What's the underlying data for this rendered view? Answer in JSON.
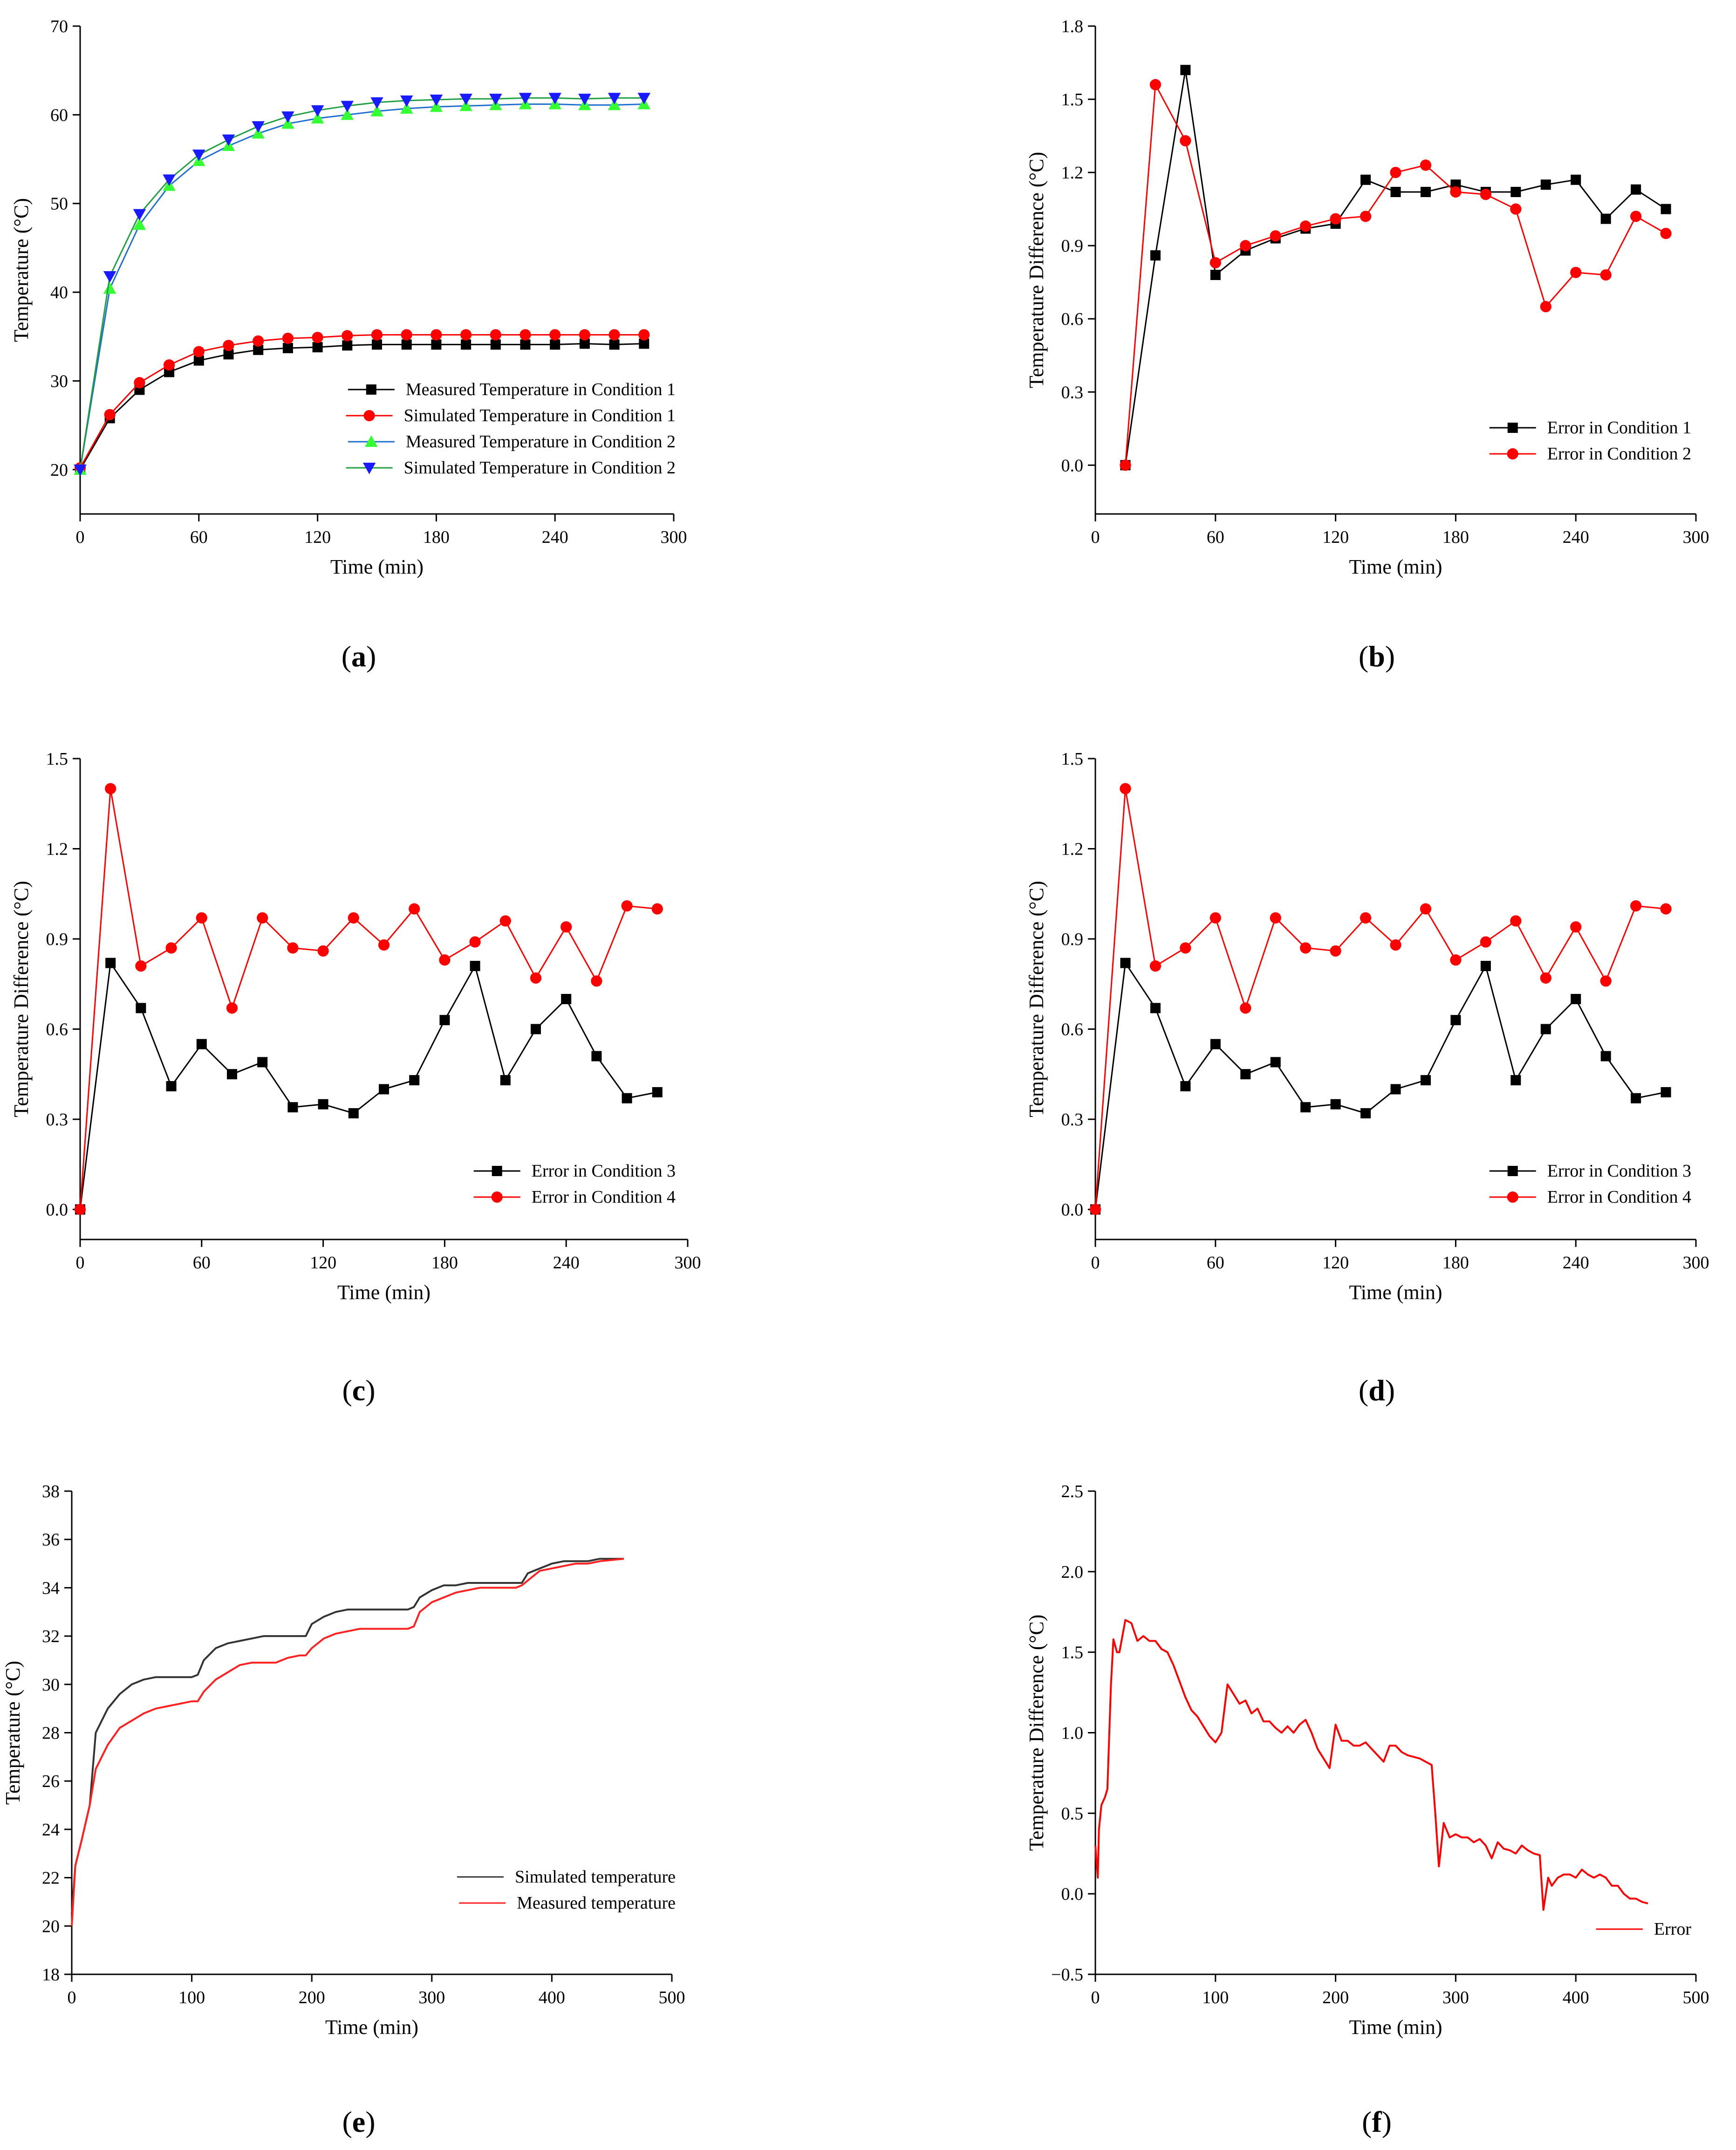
{
  "chart_data": [
    {
      "id": "a",
      "type": "line",
      "panel_label": "a",
      "xlabel": "Time (min)",
      "ylabel": "Temperature (°C)",
      "xlim": [
        0,
        300
      ],
      "ylim": [
        15,
        70
      ],
      "xticks": [
        0,
        60,
        120,
        180,
        240,
        300
      ],
      "yticks": [
        20,
        30,
        40,
        50,
        60,
        70
      ],
      "legend_position": "bottom-right",
      "series": [
        {
          "name": "Measured Temperature  in  Condition 1",
          "color": "#000000",
          "marker": "square",
          "x": [
            0,
            15,
            30,
            45,
            60,
            75,
            90,
            105,
            120,
            135,
            150,
            165,
            180,
            195,
            210,
            225,
            240,
            255,
            270,
            285
          ],
          "y": [
            20,
            25.8,
            29,
            31,
            32.3,
            33,
            33.5,
            33.7,
            33.8,
            34,
            34.1,
            34.1,
            34.1,
            34.1,
            34.1,
            34.1,
            34.1,
            34.2,
            34.1,
            34.2
          ]
        },
        {
          "name": "Simulated Temperature  in  Condition 1",
          "color": "#ff0000",
          "marker": "circle",
          "x": [
            0,
            15,
            30,
            45,
            60,
            75,
            90,
            105,
            120,
            135,
            150,
            165,
            180,
            195,
            210,
            225,
            240,
            255,
            270,
            285
          ],
          "y": [
            20.2,
            26.2,
            29.8,
            31.8,
            33.3,
            34,
            34.5,
            34.8,
            34.9,
            35.1,
            35.2,
            35.2,
            35.2,
            35.2,
            35.2,
            35.2,
            35.2,
            35.2,
            35.2,
            35.2
          ]
        },
        {
          "name": "Measured Temperature in  Condition 2",
          "color": "#1f6fd0",
          "marker": "triangle-up",
          "marker_color": "#33ff33",
          "x": [
            0,
            15,
            30,
            45,
            60,
            75,
            90,
            105,
            120,
            135,
            150,
            165,
            180,
            195,
            210,
            225,
            240,
            255,
            270,
            285
          ],
          "y": [
            20,
            40.4,
            47.6,
            52,
            54.8,
            56.5,
            57.9,
            59,
            59.6,
            60,
            60.4,
            60.7,
            60.9,
            61,
            61.1,
            61.2,
            61.2,
            61.1,
            61.1,
            61.2
          ]
        },
        {
          "name": "Simulated Temperature in  Condition 2",
          "color": "#1f9f3f",
          "marker": "triangle-down",
          "marker_color": "#1a1aff",
          "x": [
            0,
            15,
            30,
            45,
            60,
            75,
            90,
            105,
            120,
            135,
            150,
            165,
            180,
            195,
            210,
            225,
            240,
            255,
            270,
            285
          ],
          "y": [
            20,
            41.8,
            48.8,
            52.7,
            55.5,
            57.2,
            58.7,
            59.8,
            60.5,
            61,
            61.4,
            61.6,
            61.7,
            61.8,
            61.8,
            61.9,
            61.9,
            61.8,
            61.9,
            61.9
          ]
        }
      ]
    },
    {
      "id": "b",
      "type": "line",
      "panel_label": "b",
      "xlabel": "Time (min)",
      "ylabel": "Temperature Difference (°C)",
      "xlim": [
        0,
        300
      ],
      "ylim": [
        -0.2,
        1.8
      ],
      "xticks": [
        0,
        60,
        120,
        180,
        240,
        300
      ],
      "yticks": [
        0.0,
        0.3,
        0.6,
        0.9,
        1.2,
        1.5,
        1.8
      ],
      "y_decimals": 1,
      "legend_position": "bottom-right",
      "series": [
        {
          "name": "Error in  Condition 1",
          "color": "#000000",
          "marker": "square",
          "x": [
            15,
            30,
            45,
            60,
            75,
            90,
            105,
            120,
            135,
            150,
            165,
            180,
            195,
            210,
            225,
            240,
            255,
            270,
            285
          ],
          "y": [
            0.0,
            0.86,
            1.62,
            0.78,
            0.88,
            0.93,
            0.97,
            0.99,
            1.17,
            1.12,
            1.12,
            1.15,
            1.12,
            1.12,
            1.15,
            1.17,
            1.01,
            1.13,
            1.05
          ]
        },
        {
          "name": "Error in  Condition 2",
          "color": "#ff0000",
          "marker": "circle",
          "x": [
            15,
            30,
            45,
            60,
            75,
            90,
            105,
            120,
            135,
            150,
            165,
            180,
            195,
            210,
            225,
            240,
            255,
            270,
            285
          ],
          "y": [
            0.0,
            1.56,
            1.33,
            0.83,
            0.9,
            0.94,
            0.98,
            1.01,
            1.02,
            1.2,
            1.23,
            1.12,
            1.11,
            1.05,
            0.65,
            0.79,
            0.78,
            1.02,
            0.95
          ]
        }
      ]
    },
    {
      "id": "c",
      "type": "line",
      "panel_label": "c",
      "xlabel": "Time (min)",
      "ylabel": "Temperature Difference (°C)",
      "xlim": [
        0,
        300
      ],
      "ylim": [
        -0.1,
        1.5
      ],
      "xticks": [
        0,
        60,
        120,
        180,
        240,
        300
      ],
      "yticks": [
        0.0,
        0.3,
        0.6,
        0.9,
        1.2,
        1.5
      ],
      "y_decimals": 1,
      "legend_position": "bottom-right",
      "series": [
        {
          "name": "Error in  Condition 3",
          "color": "#000000",
          "marker": "square",
          "x": [
            0,
            15,
            30,
            45,
            60,
            75,
            90,
            105,
            120,
            135,
            150,
            165,
            180,
            195,
            210,
            225,
            240,
            255,
            270,
            285
          ],
          "y": [
            0.0,
            0.82,
            0.67,
            0.41,
            0.55,
            0.45,
            0.49,
            0.34,
            0.35,
            0.32,
            0.4,
            0.43,
            0.63,
            0.81,
            0.43,
            0.6,
            0.7,
            0.51,
            0.37,
            0.39
          ]
        },
        {
          "name": "Error in  Condition 4",
          "color": "#ff0000",
          "marker": "circle",
          "x": [
            0,
            15,
            30,
            45,
            60,
            75,
            90,
            105,
            120,
            135,
            150,
            165,
            180,
            195,
            210,
            225,
            240,
            255,
            270,
            285
          ],
          "y": [
            0.0,
            1.4,
            0.81,
            0.87,
            0.97,
            0.67,
            0.97,
            0.87,
            0.86,
            0.97,
            0.88,
            1.0,
            0.83,
            0.89,
            0.96,
            0.77,
            0.94,
            0.76,
            1.01,
            1.0
          ]
        }
      ]
    },
    {
      "id": "d",
      "type": "line",
      "panel_label": "d",
      "xlabel": "Time (min)",
      "ylabel": "Temperature Difference (°C)",
      "xlim": [
        0,
        300
      ],
      "ylim": [
        -0.1,
        1.5
      ],
      "xticks": [
        0,
        60,
        120,
        180,
        240,
        300
      ],
      "yticks": [
        0.0,
        0.3,
        0.6,
        0.9,
        1.2,
        1.5
      ],
      "y_decimals": 1,
      "legend_position": "bottom-right",
      "series": [
        {
          "name": "Error in  Condition 3",
          "color": "#000000",
          "marker": "square",
          "x": [
            0,
            15,
            30,
            45,
            60,
            75,
            90,
            105,
            120,
            135,
            150,
            165,
            180,
            195,
            210,
            225,
            240,
            255,
            270,
            285
          ],
          "y": [
            0.0,
            0.82,
            0.67,
            0.41,
            0.55,
            0.45,
            0.49,
            0.34,
            0.35,
            0.32,
            0.4,
            0.43,
            0.63,
            0.81,
            0.43,
            0.6,
            0.7,
            0.51,
            0.37,
            0.39
          ]
        },
        {
          "name": "Error in  Condition 4",
          "color": "#ff0000",
          "marker": "circle",
          "x": [
            0,
            15,
            30,
            45,
            60,
            75,
            90,
            105,
            120,
            135,
            150,
            165,
            180,
            195,
            210,
            225,
            240,
            255,
            270,
            285
          ],
          "y": [
            0.0,
            1.4,
            0.81,
            0.87,
            0.97,
            0.67,
            0.97,
            0.87,
            0.86,
            0.97,
            0.88,
            1.0,
            0.83,
            0.89,
            0.96,
            0.77,
            0.94,
            0.76,
            1.01,
            1.0
          ]
        }
      ]
    },
    {
      "id": "e",
      "type": "line",
      "panel_label": "e",
      "xlabel": "Time (min)",
      "ylabel": "Temperature (°C)",
      "xlim": [
        0,
        500
      ],
      "ylim": [
        18,
        38
      ],
      "xticks": [
        0,
        100,
        200,
        300,
        400,
        500
      ],
      "yticks": [
        18,
        20,
        22,
        24,
        26,
        28,
        30,
        32,
        34,
        36,
        38
      ],
      "legend_position": "bottom-right",
      "series": [
        {
          "name": "Simulated temperature",
          "color": "#333333",
          "marker": "none",
          "x": [
            0,
            3,
            8,
            15,
            20,
            30,
            40,
            50,
            60,
            70,
            80,
            90,
            100,
            105,
            110,
            120,
            130,
            140,
            150,
            160,
            170,
            180,
            190,
            195,
            200,
            210,
            220,
            230,
            240,
            250,
            260,
            270,
            280,
            285,
            290,
            300,
            310,
            320,
            330,
            340,
            350,
            360,
            370,
            375,
            380,
            390,
            400,
            410,
            420,
            430,
            440,
            460
          ],
          "y": [
            20.5,
            22.5,
            23.5,
            25,
            28,
            29,
            29.6,
            30,
            30.2,
            30.3,
            30.3,
            30.3,
            30.3,
            30.4,
            31,
            31.5,
            31.7,
            31.8,
            31.9,
            32,
            32,
            32,
            32,
            32,
            32.5,
            32.8,
            33,
            33.1,
            33.1,
            33.1,
            33.1,
            33.1,
            33.1,
            33.2,
            33.6,
            33.9,
            34.1,
            34.1,
            34.2,
            34.2,
            34.2,
            34.2,
            34.2,
            34.2,
            34.6,
            34.8,
            35,
            35.1,
            35.1,
            35.1,
            35.2,
            35.2
          ]
        },
        {
          "name": "Measured temperature",
          "color": "#ff2020",
          "marker": "none",
          "x": [
            0,
            3,
            8,
            15,
            20,
            25,
            30,
            40,
            50,
            60,
            70,
            80,
            90,
            100,
            105,
            110,
            120,
            130,
            140,
            150,
            160,
            170,
            180,
            190,
            195,
            200,
            210,
            220,
            230,
            240,
            250,
            260,
            270,
            280,
            285,
            290,
            300,
            310,
            320,
            330,
            340,
            350,
            360,
            370,
            375,
            380,
            390,
            400,
            410,
            420,
            430,
            440,
            460
          ],
          "y": [
            20,
            22.5,
            23.5,
            25,
            26.5,
            27,
            27.5,
            28.2,
            28.5,
            28.8,
            29,
            29.1,
            29.2,
            29.3,
            29.3,
            29.7,
            30.2,
            30.5,
            30.8,
            30.9,
            30.9,
            30.9,
            31.1,
            31.2,
            31.2,
            31.5,
            31.9,
            32.1,
            32.2,
            32.3,
            32.3,
            32.3,
            32.3,
            32.3,
            32.4,
            33,
            33.4,
            33.6,
            33.8,
            33.9,
            34,
            34,
            34,
            34,
            34.1,
            34.3,
            34.7,
            34.8,
            34.9,
            35,
            35,
            35.1,
            35.2
          ]
        }
      ]
    },
    {
      "id": "f",
      "type": "line",
      "panel_label": "f",
      "xlabel": "Time (min)",
      "ylabel": "Temperature Difference (°C)",
      "xlim": [
        0,
        500
      ],
      "ylim": [
        -0.5,
        2.5
      ],
      "xticks": [
        0,
        100,
        200,
        300,
        400,
        500
      ],
      "yticks": [
        -0.5,
        0.0,
        0.5,
        1.0,
        1.5,
        2.0,
        2.5
      ],
      "y_decimals": 1,
      "legend_position": "bottom-right",
      "series": [
        {
          "name": "Error",
          "color": "#ff0000",
          "marker": "none",
          "x": [
            0,
            2,
            3,
            5,
            8,
            10,
            13,
            15,
            18,
            20,
            25,
            30,
            35,
            40,
            45,
            50,
            55,
            60,
            65,
            70,
            75,
            80,
            85,
            90,
            95,
            100,
            105,
            110,
            115,
            120,
            125,
            130,
            135,
            140,
            145,
            150,
            155,
            160,
            165,
            170,
            175,
            180,
            185,
            190,
            195,
            200,
            205,
            210,
            215,
            220,
            225,
            230,
            235,
            240,
            245,
            250,
            255,
            260,
            265,
            270,
            275,
            280,
            283,
            286,
            290,
            295,
            300,
            305,
            310,
            315,
            320,
            325,
            330,
            335,
            340,
            345,
            350,
            355,
            360,
            365,
            370,
            373,
            377,
            380,
            385,
            390,
            395,
            400,
            405,
            410,
            415,
            420,
            425,
            430,
            435,
            440,
            445,
            450,
            455,
            460
          ],
          "y": [
            0.3,
            0.1,
            0.4,
            0.55,
            0.6,
            0.65,
            1.3,
            1.58,
            1.5,
            1.5,
            1.7,
            1.68,
            1.57,
            1.6,
            1.57,
            1.57,
            1.52,
            1.5,
            1.42,
            1.32,
            1.22,
            1.14,
            1.1,
            1.04,
            0.98,
            0.94,
            1.0,
            1.3,
            1.24,
            1.18,
            1.2,
            1.12,
            1.15,
            1.07,
            1.07,
            1.03,
            1.0,
            1.04,
            1.0,
            1.05,
            1.08,
            1.0,
            0.9,
            0.84,
            0.78,
            1.05,
            0.95,
            0.95,
            0.92,
            0.92,
            0.94,
            0.9,
            0.86,
            0.82,
            0.92,
            0.92,
            0.88,
            0.86,
            0.85,
            0.84,
            0.82,
            0.8,
            0.5,
            0.17,
            0.44,
            0.35,
            0.37,
            0.35,
            0.35,
            0.32,
            0.34,
            0.3,
            0.22,
            0.32,
            0.28,
            0.27,
            0.25,
            0.3,
            0.27,
            0.25,
            0.24,
            -0.1,
            0.1,
            0.05,
            0.1,
            0.12,
            0.12,
            0.1,
            0.15,
            0.12,
            0.1,
            0.12,
            0.1,
            0.05,
            0.05,
            0.0,
            -0.03,
            -0.03,
            -0.05,
            -0.06
          ]
        }
      ]
    }
  ]
}
